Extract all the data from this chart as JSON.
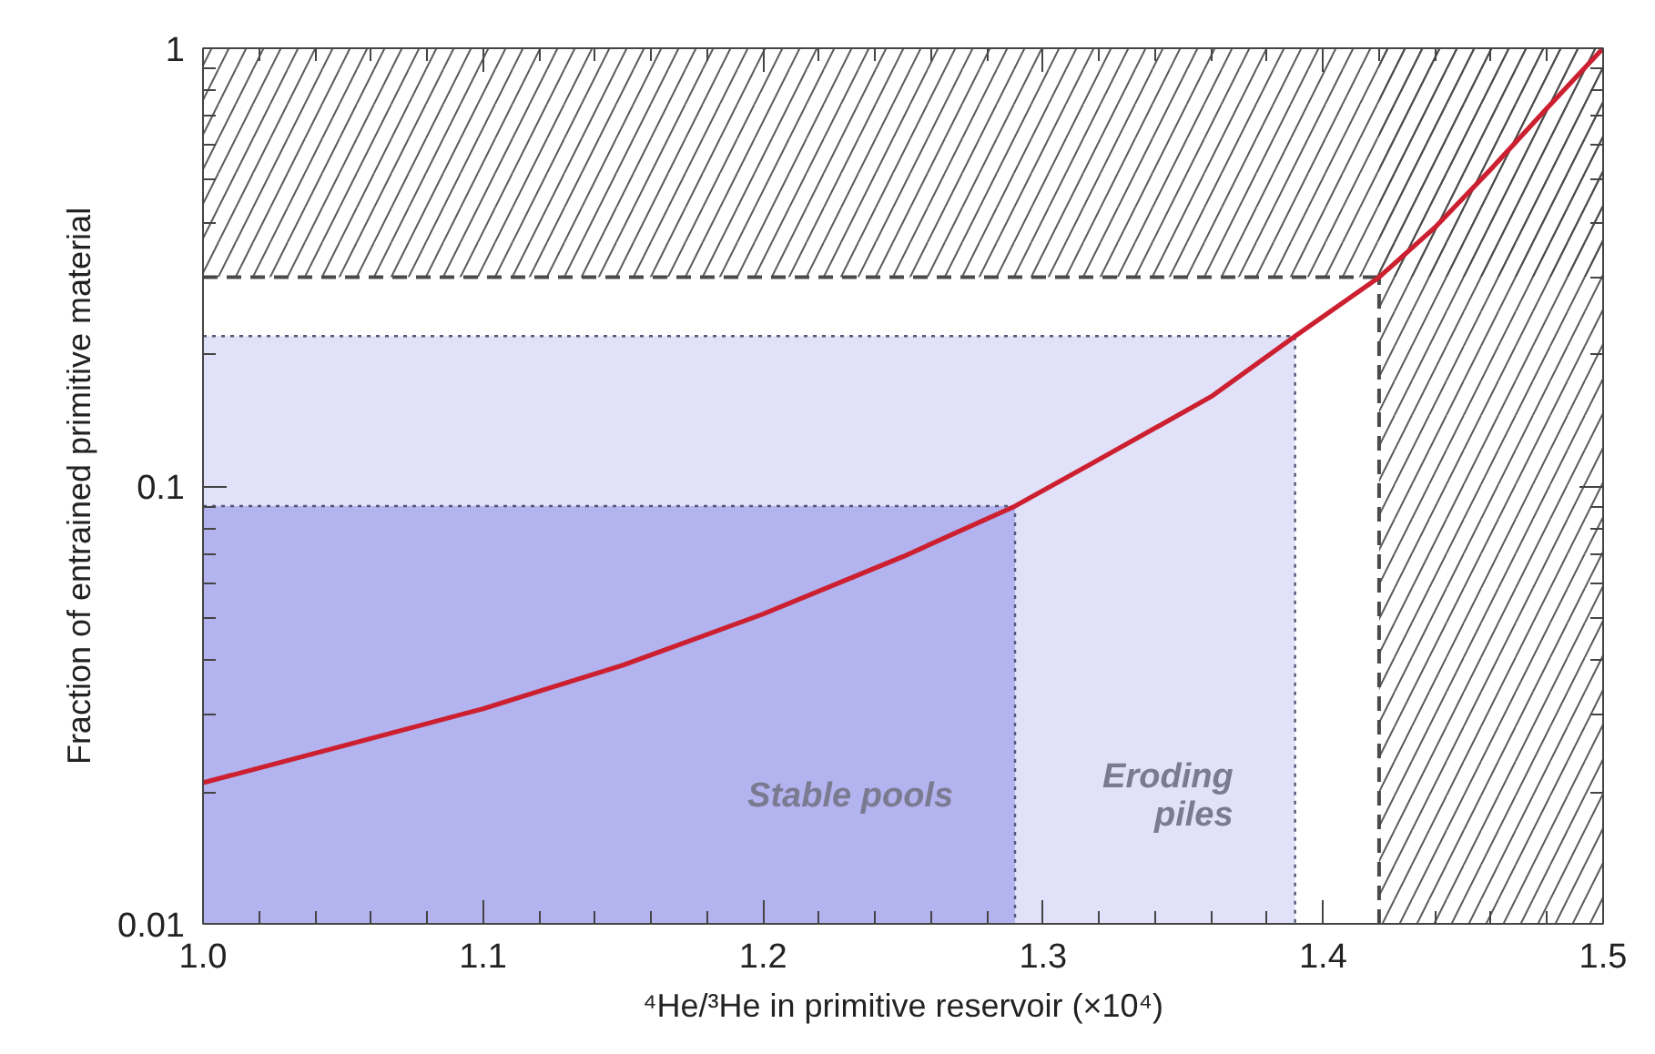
{
  "chart_data": {
    "type": "line",
    "xlabel": "⁴He/³He in primitive reservoir (×10⁴)",
    "ylabel": "Fraction of entrained primitive material",
    "log": "y",
    "xlim": [
      1.0,
      1.5
    ],
    "ylim": [
      0.01,
      1
    ],
    "xticks": [
      {
        "value": 1,
        "label": "1.0"
      },
      {
        "value": 1.02,
        "label": null
      },
      {
        "value": 1.04,
        "label": null
      },
      {
        "value": 1.06,
        "label": null
      },
      {
        "value": 1.08,
        "label": null
      },
      1.1,
      {
        "value": 1.12,
        "label": null
      },
      {
        "value": 1.14,
        "label": null
      },
      {
        "value": 1.16,
        "label": null
      },
      {
        "value": 1.18,
        "label": null
      },
      1.2,
      {
        "value": 1.22,
        "label": null
      },
      {
        "value": 1.24,
        "label": null
      },
      {
        "value": 1.26,
        "label": null
      },
      {
        "value": 1.28,
        "label": null
      },
      1.3,
      {
        "value": 1.32,
        "label": null
      },
      {
        "value": 1.34,
        "label": null
      },
      {
        "value": 1.36,
        "label": null
      },
      {
        "value": 1.38,
        "label": null
      },
      1.4,
      {
        "value": 1.42,
        "label": null
      },
      {
        "value": 1.44,
        "label": null
      },
      {
        "value": 1.46,
        "label": null
      },
      {
        "value": 1.48,
        "label": null
      },
      1.5
    ],
    "yticks": [
      0.01,
      {
        "value": 0.02,
        "label": null
      },
      {
        "value": 0.03,
        "label": null
      },
      {
        "value": 0.04,
        "label": null
      },
      {
        "value": 0.05,
        "label": null
      },
      {
        "value": 0.06,
        "label": null
      },
      {
        "value": 0.07,
        "label": null
      },
      {
        "value": 0.08,
        "label": null
      },
      {
        "value": 0.09,
        "label": null
      },
      0.1,
      {
        "value": 0.2,
        "label": null
      },
      {
        "value": 0.3,
        "label": null
      },
      {
        "value": 0.4,
        "label": null
      },
      {
        "value": 0.5,
        "label": null
      },
      {
        "value": 0.6,
        "label": null
      },
      {
        "value": 0.7,
        "label": null
      },
      {
        "value": 0.8,
        "label": null
      },
      {
        "value": 0.9,
        "label": null
      },
      1
    ],
    "series": [
      {
        "type": "area",
        "name": "Eroding\npiles",
        "color": "#e1e1f9",
        "line_style": "dotted",
        "x": [
          1.0,
          1.39
        ],
        "values": [
          0.22,
          0.22
        ]
      },
      {
        "type": "area",
        "name": "Stable pools",
        "color": "#b3b3ef",
        "line_style": "dotted",
        "x": [
          1.0,
          1.29
        ],
        "values": [
          0.09,
          0.09
        ]
      },
      {
        "color": "#cc1f2f",
        "x": [
          1.0,
          1.05,
          1.1,
          1.15,
          1.2,
          1.25,
          1.29,
          1.32,
          1.36,
          1.39,
          1.42,
          1.44,
          1.46,
          1.48,
          1.5
        ],
        "values": [
          0.021,
          0.0255,
          0.031,
          0.039,
          0.051,
          0.069,
          0.09,
          0.115,
          0.16,
          0.22,
          0.3,
          0.39,
          0.53,
          0.73,
          1.0
        ]
      }
    ],
    "bands": [
      {
        "axis": "y",
        "from": 0.3,
        "to": 1,
        "color": "#4a4a4a"
      },
      {
        "axis": "x",
        "from": 1.42,
        "to": 1.5,
        "color": "#4a4a4a"
      }
    ]
  }
}
